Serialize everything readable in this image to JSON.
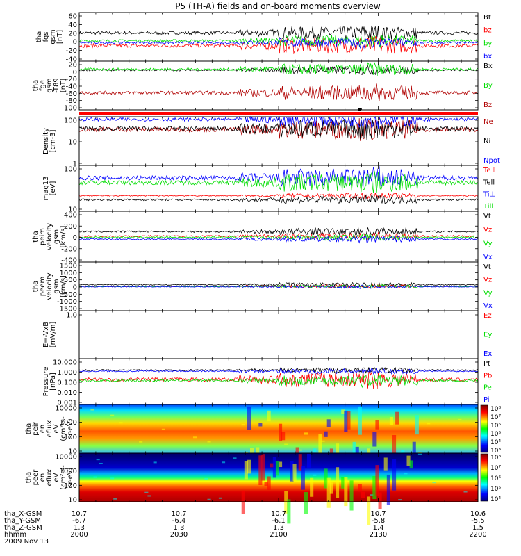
{
  "title": "P5 (TH-A) fields and on-board moments overview",
  "x_axis": {
    "tick_labels": [
      "2000",
      "2030",
      "2100",
      "2130",
      "2200"
    ],
    "ephemeris": [
      {
        "label": "tha_X-GSM",
        "values": [
          "10.7",
          "10.7",
          "10.7",
          "10.7",
          "10.6"
        ]
      },
      {
        "label": "tha_Y-GSM",
        "values": [
          "-6.7",
          "-6.4",
          "-6.1",
          "-5.8",
          "-5.5"
        ]
      },
      {
        "label": "tha_Z-GSM",
        "values": [
          "1.3",
          "1.3",
          "1.3",
          "1.4",
          "1.5"
        ]
      },
      {
        "label": "hhmm",
        "values": []
      }
    ],
    "date": "2009 Nov 13"
  },
  "chart_data": [
    {
      "type": "line",
      "ylabel": [
        "tha",
        "fgs",
        "gsm",
        "[nT]"
      ],
      "ytick_labels": [
        "60",
        "40",
        "20",
        "0",
        "-20",
        "-40"
      ],
      "ylim": [
        -40,
        60
      ],
      "series": [
        {
          "name": "Bt",
          "color": "#000000",
          "level": 18,
          "noise": 6
        },
        {
          "name": "bz",
          "color": "#ff0000",
          "level": -8,
          "noise": 7
        },
        {
          "name": "by",
          "color": "#00dd00",
          "level": 2,
          "noise": 5
        },
        {
          "name": "bx",
          "color": "#0000ff",
          "level": -2,
          "noise": 4
        }
      ]
    },
    {
      "type": "line",
      "ylabel": [
        "tha",
        "fge",
        "gsm",
        "-T89",
        "[nT]"
      ],
      "ytick_labels": [
        "20",
        "0",
        "-20",
        "-40",
        "-60",
        "-80",
        "-100"
      ],
      "ylim": [
        -100,
        20
      ],
      "series": [
        {
          "name": "Bx",
          "color": "#000000",
          "level": -2,
          "noise": 4
        },
        {
          "name": "By",
          "color": "#00dd00",
          "level": 0,
          "noise": 6
        },
        {
          "name": "Bz",
          "color": "#b00000",
          "level": -58,
          "noise": 8
        }
      ]
    },
    {
      "type": "line",
      "ylabel": [
        "Density",
        "[cm-3]"
      ],
      "ytick_labels": [
        "100",
        "10",
        "1"
      ],
      "yscale": "log",
      "ylim": [
        1,
        200
      ],
      "series": [
        {
          "name": "Ne",
          "color": "#b00000",
          "level": 50,
          "noise": 0.2
        },
        {
          "name": "Ni",
          "color": "#000000",
          "level": 55,
          "noise": 0.2
        },
        {
          "name": "Npot",
          "color": "#0000ff",
          "level": 150,
          "noise": 0.15
        }
      ]
    },
    {
      "type": "line",
      "ylabel": [
        "mag13",
        "[eV]"
      ],
      "ytick_labels": [
        "100",
        "10"
      ],
      "yscale": "log",
      "ylim": [
        5,
        800
      ],
      "series": [
        {
          "name": "Te⊥",
          "color": "#ff0000",
          "level": 28,
          "noise": 0.05
        },
        {
          "name": "Tell",
          "color": "#000000",
          "level": 18,
          "noise": 0.08
        },
        {
          "name": "Ti⊥",
          "color": "#0000ff",
          "level": 200,
          "noise": 0.2
        },
        {
          "name": "Till",
          "color": "#00dd00",
          "level": 120,
          "noise": 0.2
        }
      ]
    },
    {
      "type": "line",
      "ylabel": [
        "tha",
        "peim",
        "velocity",
        "gsm",
        "[km/s]"
      ],
      "ytick_labels": [
        "400",
        "200",
        "0",
        "-200",
        "-400"
      ],
      "ylim": [
        -400,
        400
      ],
      "series": [
        {
          "name": "Vt",
          "color": "#000000",
          "level": 80,
          "noise": 25
        },
        {
          "name": "Vz",
          "color": "#ff0000",
          "level": 10,
          "noise": 20
        },
        {
          "name": "Vy",
          "color": "#00dd00",
          "level": -10,
          "noise": 20
        },
        {
          "name": "Vx",
          "color": "#0000ff",
          "level": -40,
          "noise": 20
        }
      ]
    },
    {
      "type": "line",
      "ylabel": [
        "tha",
        "peem",
        "velocity",
        "gsm",
        "[km/s]"
      ],
      "ytick_labels": [
        "1500",
        "1000",
        "500",
        "0",
        "-500",
        "-1000",
        "-1500"
      ],
      "ylim": [
        -1500,
        1500
      ],
      "series": [
        {
          "name": "Vt",
          "color": "#000000",
          "level": 100,
          "noise": 60
        },
        {
          "name": "Vz",
          "color": "#ff0000",
          "level": 10,
          "noise": 40
        },
        {
          "name": "Vy",
          "color": "#00dd00",
          "level": 0,
          "noise": 40
        },
        {
          "name": "Vx",
          "color": "#0000ff",
          "level": -30,
          "noise": 40
        }
      ]
    },
    {
      "type": "line",
      "ylabel": [
        "E=-VxB",
        "[mV/m]"
      ],
      "ytick_labels": [
        "1.0"
      ],
      "ylim": [
        0,
        1
      ],
      "series": [
        {
          "name": "Ez",
          "color": "#ff0000"
        },
        {
          "name": "Ey",
          "color": "#00dd00"
        },
        {
          "name": "Ex",
          "color": "#0000ff"
        }
      ]
    },
    {
      "type": "line",
      "ylabel": [
        "Pressure",
        "[nPa]"
      ],
      "ytick_labels": [
        "10.000",
        "1.000",
        "0.100",
        "0.010",
        "0.001"
      ],
      "yscale": "log",
      "ylim": [
        0.001,
        10
      ],
      "series": [
        {
          "name": "Pt",
          "color": "#000000",
          "level": 1.0,
          "noise": 0.1
        },
        {
          "name": "Pb",
          "color": "#ff0000",
          "level": 0.15,
          "noise": 0.3
        },
        {
          "name": "Pe",
          "color": "#00dd00",
          "level": 0.12,
          "noise": 0.2
        },
        {
          "name": "Pi",
          "color": "#0000ff",
          "level": 0.8,
          "noise": 0.1
        }
      ]
    },
    {
      "type": "heatmap",
      "ylabel": [
        "tha",
        "peir",
        "en",
        "eflux",
        "eV",
        "(cm²-s-",
        "sr-eV)"
      ],
      "ytick_labels": [
        "10000",
        "1000",
        "100",
        "10"
      ],
      "yscale": "log",
      "colorbar_ticks": [
        "10⁸",
        "10⁷",
        "10⁶",
        "10⁵",
        "10⁴",
        "10³"
      ]
    },
    {
      "type": "heatmap",
      "ylabel": [
        "tha",
        "peer",
        "en",
        "eflux",
        "eV",
        "(cm²-s-",
        "sr-eV)"
      ],
      "ytick_labels": [
        "10000",
        "1000",
        "100",
        "10"
      ],
      "yscale": "log",
      "colorbar_ticks": [
        "10⁸",
        "10⁷",
        "10⁶",
        "10⁵",
        "10⁴"
      ]
    }
  ]
}
